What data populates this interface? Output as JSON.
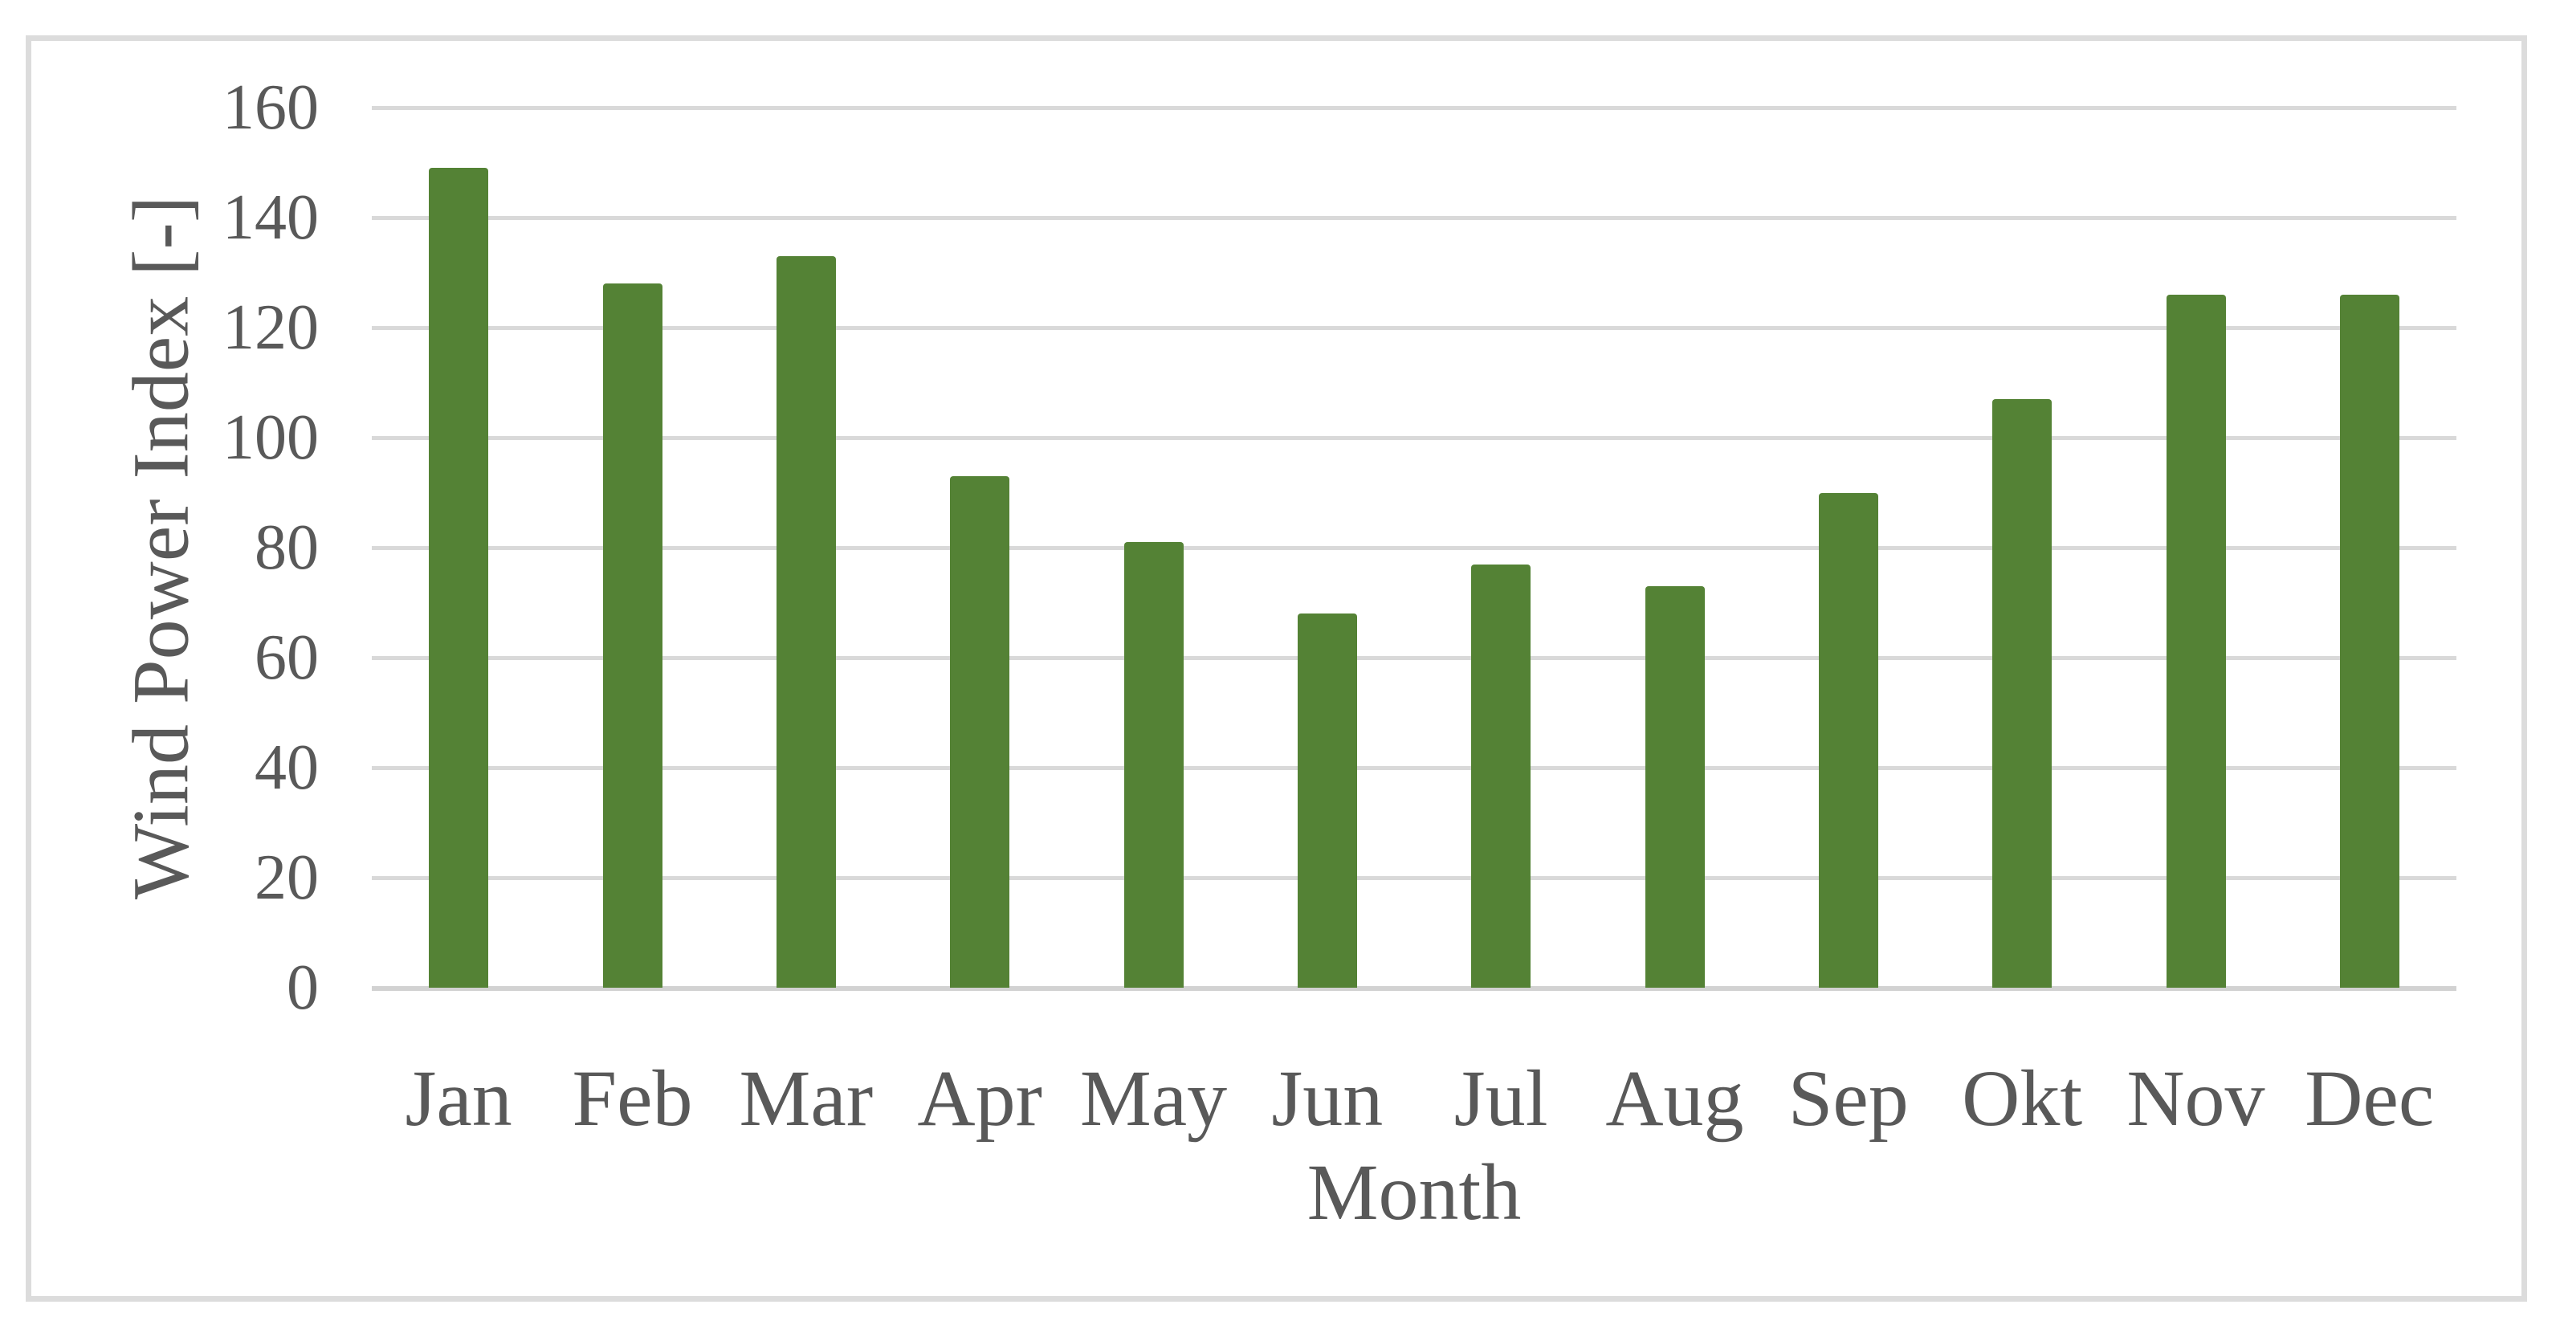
{
  "figure": {
    "background_color": "#ffffff",
    "border_color": "#dcdcdc"
  },
  "chart_data": {
    "type": "bar",
    "title": "",
    "categories": [
      "Jan",
      "Feb",
      "Mar",
      "Apr",
      "May",
      "Jun",
      "Jul",
      "Aug",
      "Sep",
      "Okt",
      "Nov",
      "Dec"
    ],
    "values": [
      149,
      128,
      133,
      93,
      81,
      68,
      77,
      73,
      90,
      107,
      126,
      126
    ],
    "xlabel": "Month",
    "ylabel": "Wind Power Index [-]",
    "ylim": [
      0,
      160
    ],
    "yticks": [
      0,
      20,
      40,
      60,
      80,
      100,
      120,
      140,
      160
    ],
    "grid": true,
    "legend": false,
    "bar_color": "#548235",
    "gridline_color": "#d9d9d9",
    "axis_text_color": "#595959"
  }
}
